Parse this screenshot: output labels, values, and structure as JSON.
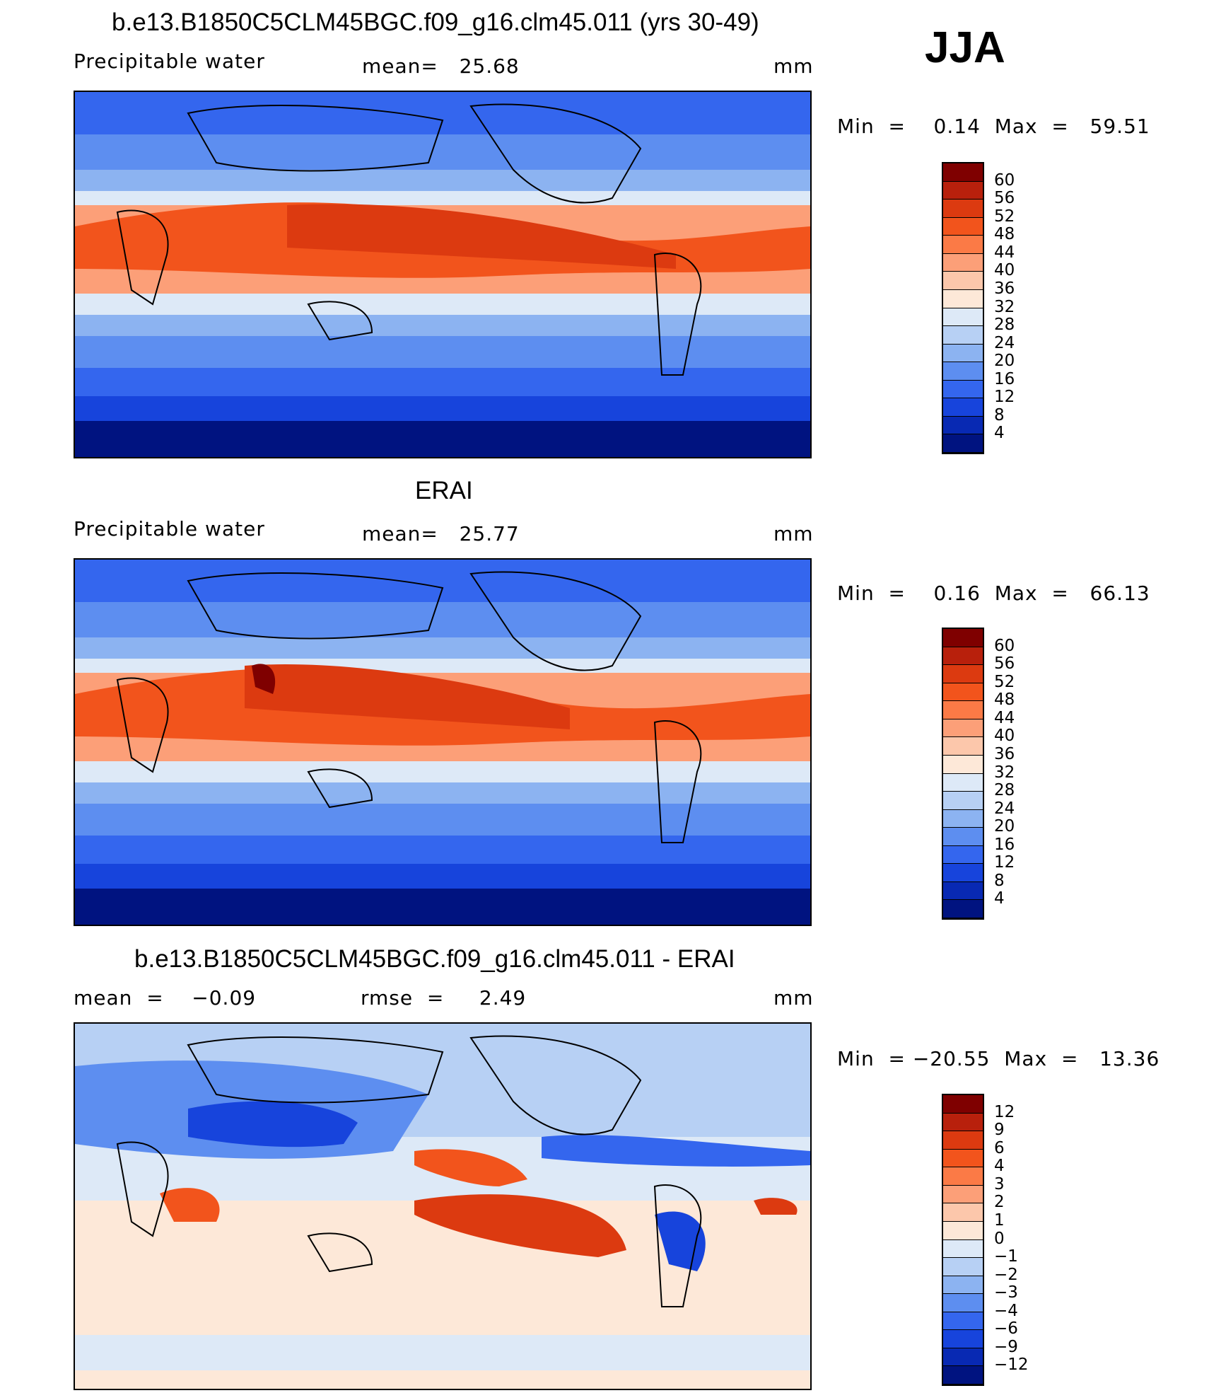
{
  "panels": [
    {
      "id": "model",
      "title": "b.e13.B1850C5CLM45BGC.f09_g16.clm45.011 (yrs 30-49)",
      "variable": "Precipitable water",
      "stat1": "mean=   25.68",
      "units": "mm",
      "minmax": "Min  =    0.14  Max  =   59.51",
      "colorbar_labels": [
        "60",
        "56",
        "52",
        "48",
        "44",
        "40",
        "36",
        "32",
        "28",
        "24",
        "20",
        "16",
        "12",
        "8",
        "4"
      ],
      "colorbar_colors": [
        "#7f0000",
        "#b8200c",
        "#dc3a10",
        "#f2541c",
        "#fb7a46",
        "#fc9f78",
        "#fcc7ab",
        "#fde8d8",
        "#dde9f7",
        "#b7d0f4",
        "#8cb3f1",
        "#5d8ef0",
        "#3466ee",
        "#1744dc",
        "#0829b3",
        "#001380"
      ]
    },
    {
      "id": "obs",
      "title": "ERAI",
      "variable": "Precipitable water",
      "stat1": "mean=   25.77",
      "units": "mm",
      "minmax": "Min  =    0.16  Max  =   66.13",
      "colorbar_labels": [
        "60",
        "56",
        "52",
        "48",
        "44",
        "40",
        "36",
        "32",
        "28",
        "24",
        "20",
        "16",
        "12",
        "8",
        "4"
      ],
      "colorbar_colors": [
        "#7f0000",
        "#b8200c",
        "#dc3a10",
        "#f2541c",
        "#fb7a46",
        "#fc9f78",
        "#fcc7ab",
        "#fde8d8",
        "#dde9f7",
        "#b7d0f4",
        "#8cb3f1",
        "#5d8ef0",
        "#3466ee",
        "#1744dc",
        "#0829b3",
        "#001380"
      ]
    },
    {
      "id": "diff",
      "title": "b.e13.B1850C5CLM45BGC.f09_g16.clm45.011 - ERAI",
      "variable": "mean  =    −0.09",
      "stat1": "rmse  =     2.49",
      "units": "mm",
      "minmax": "Min  = −20.55  Max  =   13.36",
      "colorbar_labels": [
        "12",
        "9",
        "6",
        "4",
        "3",
        "2",
        "1",
        "0",
        "−1",
        "−2",
        "−3",
        "−4",
        "−6",
        "−9",
        "−12"
      ],
      "colorbar_colors": [
        "#7f0000",
        "#b8200c",
        "#dc3a10",
        "#f2541c",
        "#fb7a46",
        "#fc9f78",
        "#fcc7ab",
        "#fde8d8",
        "#dde9f7",
        "#b7d0f4",
        "#8cb3f1",
        "#5d8ef0",
        "#3466ee",
        "#1744dc",
        "#0829b3",
        "#001380"
      ]
    }
  ],
  "season": "JJA"
}
